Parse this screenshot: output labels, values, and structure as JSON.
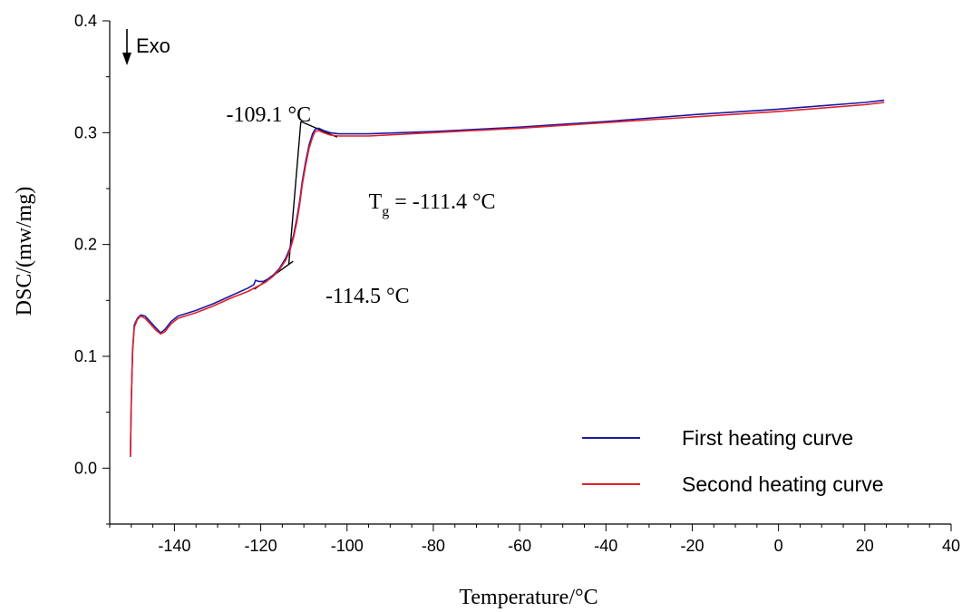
{
  "chart_data": {
    "type": "line",
    "xlabel": "Temperature/°C",
    "ylabel": "DSC/(mw/mg)",
    "xlim": [
      -155,
      40
    ],
    "ylim": [
      -0.05,
      0.4
    ],
    "x_ticks": [
      -140,
      -120,
      -100,
      -80,
      -60,
      -40,
      -20,
      0,
      20,
      40
    ],
    "y_ticks": [
      0.0,
      0.1,
      0.2,
      0.3,
      0.4
    ],
    "x_tick_labels": [
      "-140",
      "-120",
      "-100",
      "-80",
      "-60",
      "-40",
      "-20",
      "0",
      "20",
      "40"
    ],
    "y_tick_labels": [
      "0.0",
      "0.1",
      "0.2",
      "0.3",
      "0.4"
    ],
    "grid": false,
    "legend_position": "bottom-right",
    "exo_label": "Exo",
    "series": [
      {
        "name": "First heating curve",
        "color": "#1a1aa6",
        "x": [
          -150.2,
          -150.0,
          -149.7,
          -149.3,
          -148.6,
          -147.8,
          -146.8,
          -145.6,
          -144.2,
          -143.2,
          -142.2,
          -140.8,
          -139.2,
          -137.5,
          -135.0,
          -131.0,
          -127.0,
          -123.0,
          -121.6,
          -121.2,
          -120.5,
          -119.4,
          -118.4,
          -117.0,
          -115.6,
          -114.2,
          -113.2,
          -112.4,
          -111.7,
          -111.0,
          -110.4,
          -109.6,
          -108.8,
          -108.0,
          -107.4,
          -106.6,
          -105.5,
          -104.0,
          -102.0,
          -95.0,
          -80.0,
          -60.0,
          -40.0,
          -20.0,
          0.0,
          10.0,
          20.0,
          24.5
        ],
        "y": [
          0.01,
          0.06,
          0.105,
          0.128,
          0.134,
          0.137,
          0.136,
          0.131,
          0.125,
          0.121,
          0.124,
          0.131,
          0.136,
          0.138,
          0.141,
          0.147,
          0.154,
          0.161,
          0.164,
          0.168,
          0.167,
          0.167,
          0.169,
          0.173,
          0.179,
          0.188,
          0.197,
          0.208,
          0.222,
          0.238,
          0.256,
          0.274,
          0.289,
          0.299,
          0.303,
          0.304,
          0.302,
          0.3,
          0.299,
          0.299,
          0.301,
          0.305,
          0.31,
          0.316,
          0.321,
          0.324,
          0.327,
          0.329
        ]
      },
      {
        "name": "Second heating curve",
        "color": "#e0202a",
        "x": [
          -150.2,
          -150.0,
          -149.7,
          -149.3,
          -148.6,
          -147.8,
          -146.8,
          -145.6,
          -144.2,
          -143.2,
          -142.2,
          -140.8,
          -139.2,
          -137.5,
          -135.0,
          -131.0,
          -127.0,
          -123.0,
          -121.0,
          -119.0,
          -117.0,
          -115.6,
          -114.2,
          -113.2,
          -112.4,
          -111.7,
          -111.0,
          -110.4,
          -109.6,
          -108.8,
          -108.0,
          -107.4,
          -106.6,
          -105.5,
          -104.0,
          -102.0,
          -95.0,
          -80.0,
          -60.0,
          -40.0,
          -20.0,
          0.0,
          10.0,
          20.0,
          24.5
        ],
        "y": [
          0.01,
          0.06,
          0.103,
          0.126,
          0.133,
          0.136,
          0.134,
          0.129,
          0.123,
          0.12,
          0.122,
          0.129,
          0.134,
          0.136,
          0.139,
          0.145,
          0.152,
          0.158,
          0.162,
          0.166,
          0.172,
          0.178,
          0.186,
          0.195,
          0.206,
          0.219,
          0.235,
          0.253,
          0.271,
          0.286,
          0.296,
          0.301,
          0.302,
          0.3,
          0.298,
          0.297,
          0.297,
          0.3,
          0.304,
          0.309,
          0.314,
          0.319,
          0.322,
          0.325,
          0.327
        ]
      }
    ],
    "tangent_lines": [
      {
        "x": [
          -121.5,
          -112.5
        ],
        "y": [
          0.16,
          0.185
        ]
      },
      {
        "x": [
          -113.5,
          -110.7
        ],
        "y": [
          0.182,
          0.31
        ]
      },
      {
        "x": [
          -110.7,
          -102.3
        ],
        "y": [
          0.31,
          0.296
        ]
      }
    ],
    "annotations": {
      "onset": {
        "text": "-114.5 °C",
        "x": -105,
        "y": 0.148
      },
      "endset": {
        "text": "-109.1 °C",
        "x": -128,
        "y": 0.31
      },
      "tg": {
        "prefix": "T",
        "subscript": "g",
        "suffix": " = -111.4 °C",
        "x": -95,
        "y": 0.232
      }
    }
  }
}
